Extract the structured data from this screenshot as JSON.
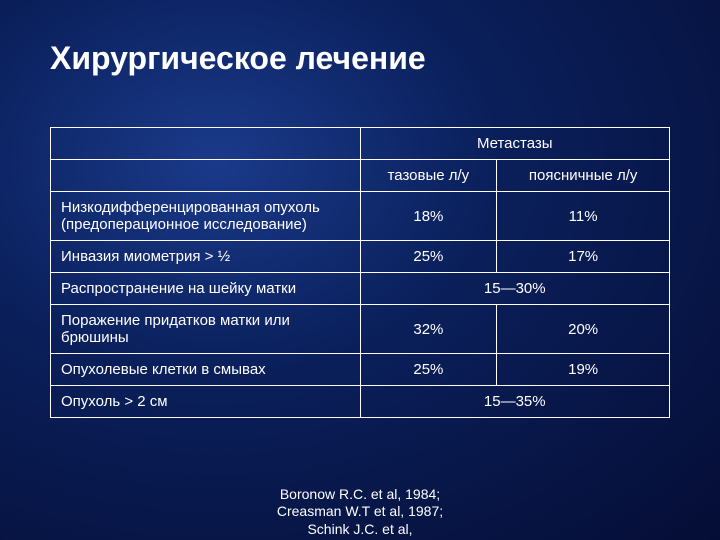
{
  "slide": {
    "title": "Хирургическое лечение",
    "background_gradient": [
      "#1a3a8a",
      "#0a1f5a",
      "#050d35"
    ],
    "text_color": "#ffffff",
    "border_color": "#ffffff",
    "title_fontsize": 32,
    "body_fontsize": 15,
    "table": {
      "type": "table",
      "header_main": "Метастазы",
      "sub_headers": [
        "тазовые л/у",
        "поясничные л/у"
      ],
      "column_widths": [
        "50%",
        "25%",
        "25%"
      ],
      "rows": [
        {
          "label": "Низкодифференцированная опухоль (предоперационное исследование)",
          "cells": [
            "18%",
            "11%"
          ],
          "merged": false
        },
        {
          "label": "Инвазия миометрия > ½",
          "cells": [
            "25%",
            "17%"
          ],
          "merged": false
        },
        {
          "label": "Распространение на шейку матки",
          "cells": [
            "15—30%"
          ],
          "merged": true
        },
        {
          "label": "Поражение придатков матки или брюшины",
          "cells": [
            "32%",
            "20%"
          ],
          "merged": false
        },
        {
          "label": "Опухолевые клетки в смывах",
          "cells": [
            "25%",
            "19%"
          ],
          "merged": false
        },
        {
          "label": "Опухоль > 2 см",
          "cells": [
            "15—35%"
          ],
          "merged": true
        }
      ]
    },
    "citation": "Boronow R.C. et al, 1984; Creasman W.T et al, 1987; Schink J.C. et al,"
  }
}
